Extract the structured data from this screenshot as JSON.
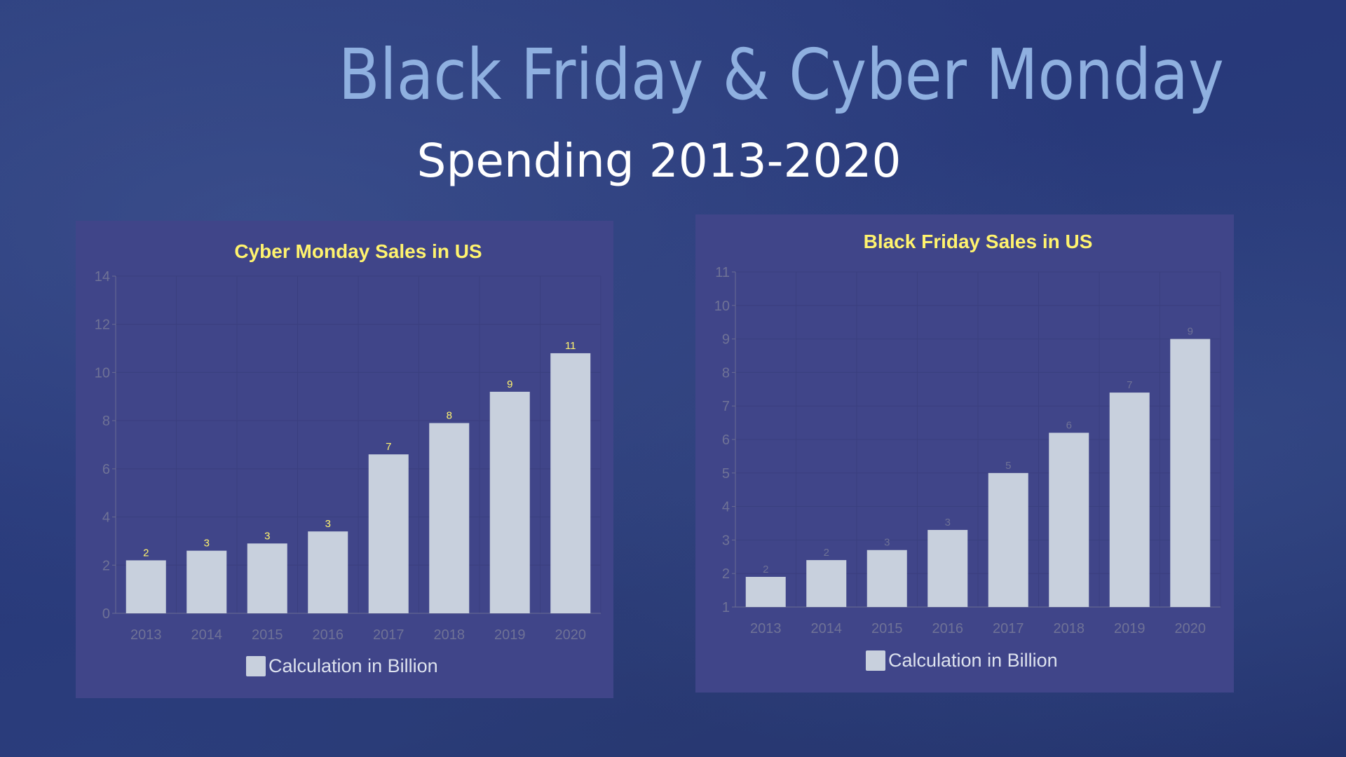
{
  "header": {
    "title": "Black Friday & Cyber Monday",
    "subtitle": "Spending 2013-2020"
  },
  "colors": {
    "title": "#8fb0e0",
    "panel": "#404589",
    "bar": "#c8d0dd",
    "chart_title": "#fff36e",
    "axis_text": "#6f7296"
  },
  "chart_data": [
    {
      "type": "bar",
      "title": "Cyber Monday Sales in US",
      "categories": [
        "2013",
        "2014",
        "2015",
        "2016",
        "2017",
        "2018",
        "2019",
        "2020"
      ],
      "series": [
        {
          "name": "Calculation in Billion",
          "values": [
            2.2,
            2.6,
            2.9,
            3.4,
            6.6,
            7.9,
            9.2,
            10.8
          ]
        }
      ],
      "data_labels": [
        "2",
        "3",
        "3",
        "3",
        "7",
        "8",
        "9",
        "11"
      ],
      "data_label_color": "#fff36e",
      "yticks": [
        "0",
        "2",
        "4",
        "6",
        "8",
        "10",
        "12",
        "14"
      ],
      "ylim": [
        0,
        14
      ],
      "grid": true,
      "legend": "bottom"
    },
    {
      "type": "bar",
      "title": "Black Friday Sales in US",
      "categories": [
        "2013",
        "2014",
        "2015",
        "2016",
        "2017",
        "2018",
        "2019",
        "2020"
      ],
      "series": [
        {
          "name": "Calculation in Billion",
          "values": [
            1.9,
            2.4,
            2.7,
            3.3,
            5.0,
            6.2,
            7.4,
            9.0
          ]
        }
      ],
      "data_labels": [
        "2",
        "2",
        "3",
        "3",
        "5",
        "6",
        "7",
        "9"
      ],
      "data_label_color": "#6f7296",
      "yticks": [
        "1",
        "2",
        "3",
        "4",
        "5",
        "6",
        "7",
        "8",
        "9",
        "10",
        "11"
      ],
      "ylim": [
        1,
        11
      ],
      "grid": true,
      "legend": "bottom"
    }
  ]
}
